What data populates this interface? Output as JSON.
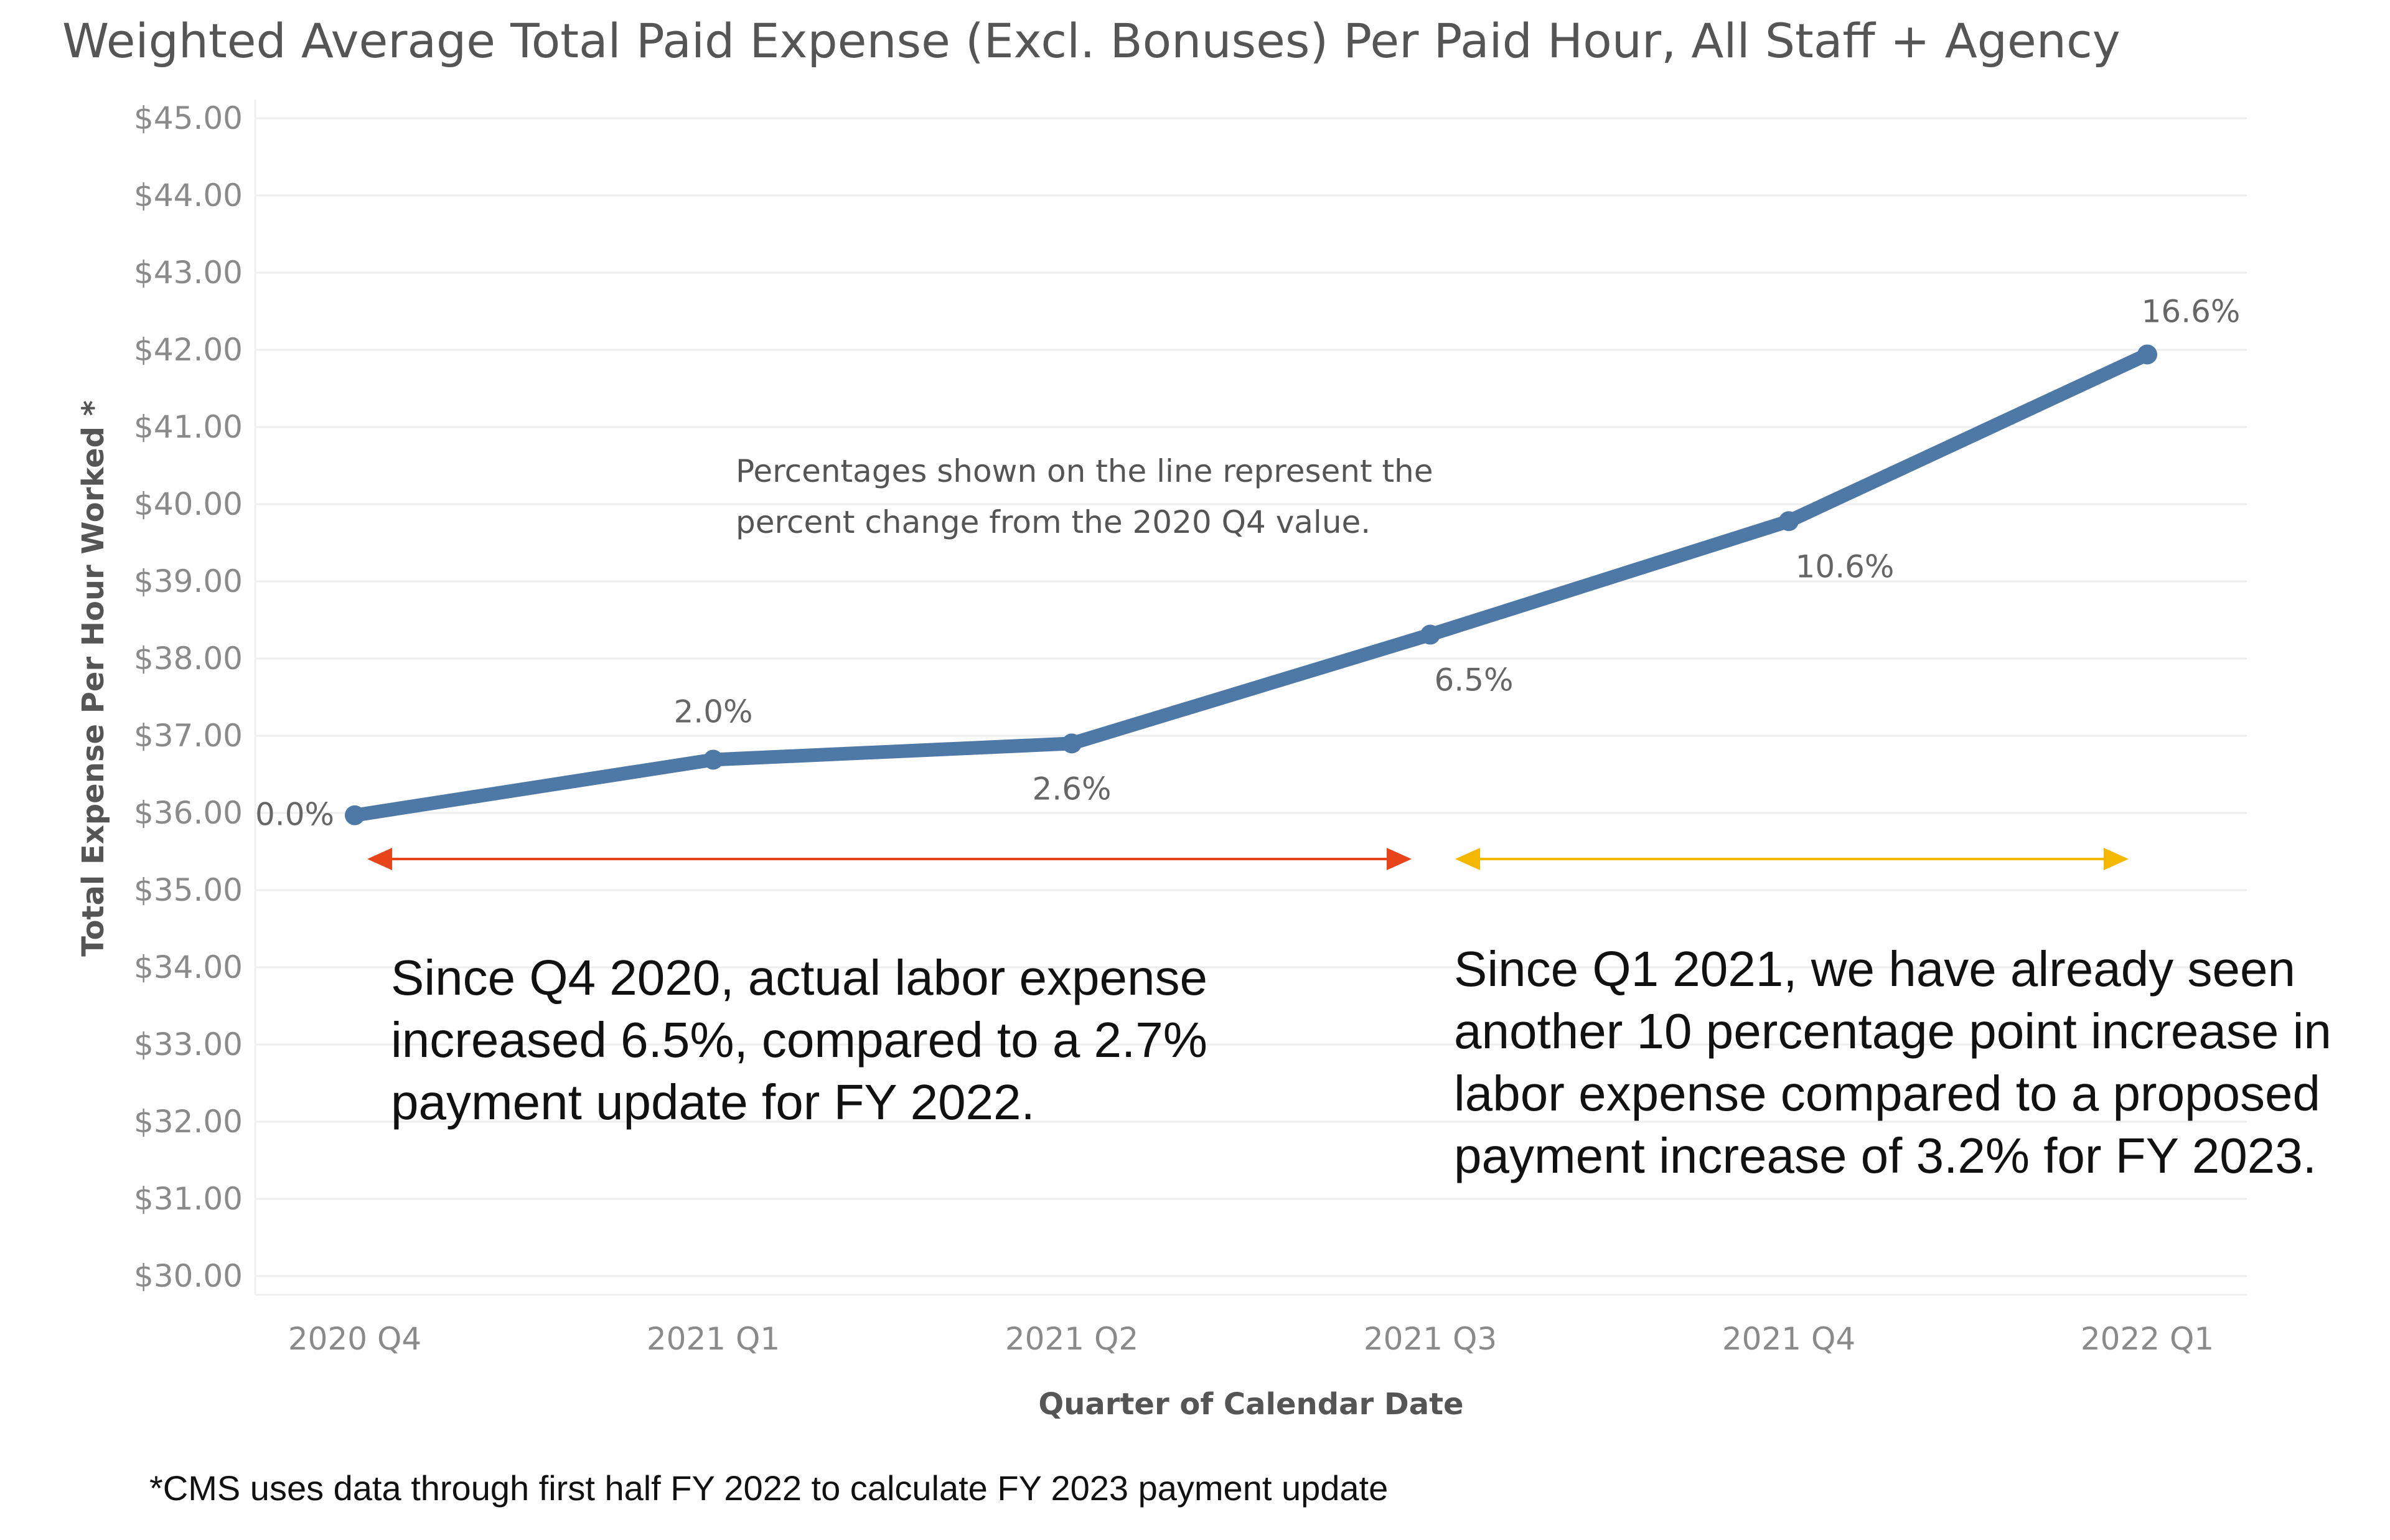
{
  "chart_data": {
    "type": "line",
    "title": "Weighted Average Total Paid Expense (Excl. Bonuses) Per Paid Hour, All Staff + Agency",
    "xlabel": "Quarter of Calendar Date",
    "ylabel": "Total Expense Per Hour Worked *",
    "categories": [
      "2020 Q4",
      "2021 Q1",
      "2021 Q2",
      "2021 Q3",
      "2021 Q4",
      "2022 Q1"
    ],
    "values": [
      35.97,
      36.69,
      36.9,
      38.31,
      39.78,
      41.94
    ],
    "data_labels": [
      "0.0%",
      "2.0%",
      "2.6%",
      "6.5%",
      "10.6%",
      "16.6%"
    ],
    "ylim": [
      30,
      45
    ],
    "y_ticks": [
      30,
      31,
      32,
      33,
      34,
      35,
      36,
      37,
      38,
      39,
      40,
      41,
      42,
      43,
      44,
      45
    ],
    "y_tick_labels": [
      "$30.00",
      "$31.00",
      "$32.00",
      "$33.00",
      "$34.00",
      "$35.00",
      "$36.00",
      "$37.00",
      "$38.00",
      "$39.00",
      "$40.00",
      "$41.00",
      "$42.00",
      "$43.00",
      "$44.00",
      "$45.00"
    ],
    "grid": true,
    "legend": "none",
    "line_color": "#4e79a7",
    "annotation_note": {
      "line1": "Percentages shown on the line represent the",
      "line2": "percent change from the 2020 Q4 value."
    },
    "range_arrows": [
      {
        "from": "2020 Q4",
        "to": "2021 Q3",
        "color": "#e8441a"
      },
      {
        "from": "2021 Q3",
        "to": "2022 Q1",
        "color": "#f5b800"
      }
    ],
    "callout_left": [
      "Since Q4 2020, actual labor expense",
      "increased 6.5%, compared to a 2.7%",
      "payment update for FY 2022."
    ],
    "callout_right": [
      "Since Q1 2021, we have already seen",
      "another 10 percentage point increase in",
      "labor expense compared to a proposed",
      "payment increase of 3.2% for FY 2023."
    ],
    "footnote": "*CMS uses data through first half FY 2022 to calculate FY 2023 payment update"
  }
}
